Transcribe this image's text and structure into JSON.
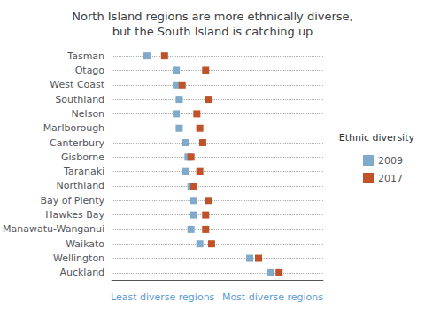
{
  "chart_data": {
    "type": "scatter",
    "title": "North Island regions are more ethnically diverse,\nbut the South Island is catching up",
    "categories": [
      "Tasman",
      "Otago",
      "West Coast",
      "Southland",
      "Nelson",
      "Marlborough",
      "Canterbury",
      "Gisborne",
      "Taranaki",
      "Northland",
      "Bay of Plenty",
      "Hawkes Bay",
      "Manawatu-Wanganui",
      "Waikato",
      "Wellington",
      "Auckland"
    ],
    "series": [
      {
        "name": "2009",
        "color": "#7faacc",
        "marker": "square",
        "values": [
          0.12,
          0.22,
          0.22,
          0.23,
          0.22,
          0.23,
          0.25,
          0.26,
          0.25,
          0.27,
          0.28,
          0.28,
          0.27,
          0.3,
          0.47,
          0.54
        ]
      },
      {
        "name": "2017",
        "color": "#c0522a",
        "marker": "square",
        "values": [
          0.18,
          0.32,
          0.24,
          0.33,
          0.29,
          0.3,
          0.31,
          0.27,
          0.3,
          0.28,
          0.33,
          0.32,
          0.32,
          0.34,
          0.5,
          0.57
        ]
      }
    ],
    "orientation": "horizontal",
    "xlim": [
      0.0,
      0.72
    ],
    "xticks": [],
    "tick_labels": "y",
    "grid": true,
    "legend": "right",
    "legend_title": "Ethnic diversity",
    "annotations": [
      "Least diverse regions",
      "Most diverse regions"
    ]
  }
}
